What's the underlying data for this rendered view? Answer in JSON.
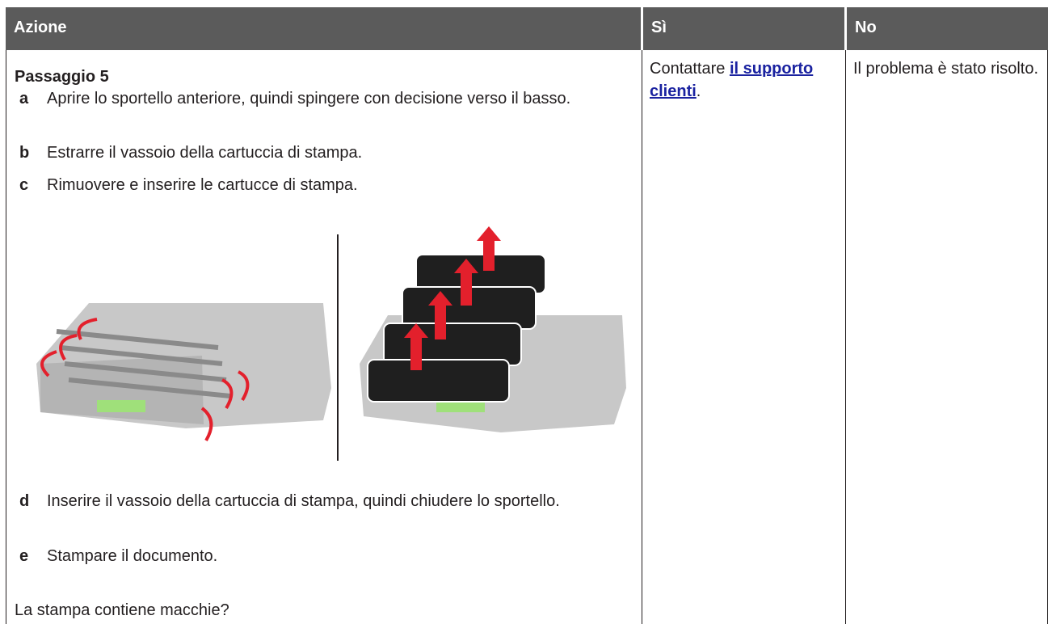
{
  "table": {
    "header": [
      "Azione",
      "Sì",
      "No"
    ],
    "action": {
      "title": "Passaggio 5",
      "steps_before": [
        {
          "letter": "a",
          "text": "Aprire lo sportello anteriore, quindi spingere con decisione verso il basso."
        },
        {
          "letter": "b",
          "text": "Estrarre il vassoio della cartuccia di stampa."
        },
        {
          "letter": "c",
          "text": "Rimuovere e inserire le cartucce di stampa."
        }
      ],
      "steps_after": [
        {
          "letter": "d",
          "text": "Inserire il vassoio della cartuccia di stampa, quindi chiudere lo sportello."
        },
        {
          "letter": "e",
          "text": "Stampare il documento."
        }
      ],
      "question": "La stampa contiene macchie?"
    },
    "yes": {
      "prefix": "Contattare ",
      "link": "il supporto clienti",
      "suffix": "."
    },
    "no": "Il problema è stato risolto."
  }
}
